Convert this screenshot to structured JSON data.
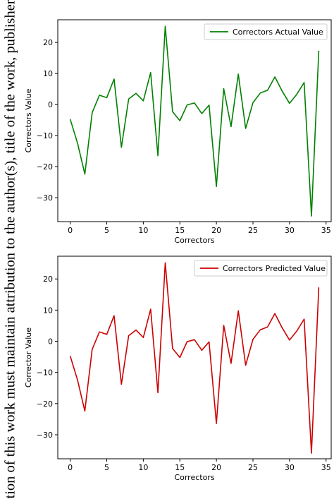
{
  "side_caption": "tion of this work must maintain attribution to the author(s), title of the work, publisher, and D",
  "chart_data": [
    {
      "type": "line",
      "xlabel": "Correctors",
      "ylabel": "Correctors Value",
      "xlim": [
        -1.7,
        35.7
      ],
      "ylim": [
        -37.7,
        27.3
      ],
      "xticks": [
        0,
        5,
        10,
        15,
        20,
        25,
        30,
        35
      ],
      "yticks": [
        -30,
        -20,
        -10,
        0,
        10,
        20
      ],
      "legend": "top-right",
      "grid": false,
      "series": [
        {
          "name": "Correctors Actual Value",
          "color": "#008000",
          "x": [
            0,
            1,
            2,
            3,
            4,
            5,
            6,
            7,
            8,
            9,
            10,
            11,
            12,
            13,
            14,
            15,
            16,
            17,
            18,
            19,
            20,
            21,
            22,
            23,
            24,
            25,
            26,
            27,
            28,
            29,
            30,
            31,
            32,
            33,
            34
          ],
          "values": [
            -4.7,
            -12.4,
            -22.4,
            -2.6,
            3.0,
            2.2,
            8.2,
            -13.8,
            1.8,
            3.6,
            1.2,
            10.3,
            -16.5,
            25.2,
            -2.3,
            -5.2,
            -0.1,
            0.5,
            -2.9,
            -0.2,
            -26.4,
            5.1,
            -7.1,
            9.8,
            -7.7,
            0.6,
            3.7,
            4.6,
            8.9,
            4.3,
            0.4,
            3.3,
            7.1,
            -35.9,
            17.3
          ]
        }
      ]
    },
    {
      "type": "line",
      "xlabel": "Correctors",
      "ylabel": "Corrector Value",
      "xlim": [
        -1.7,
        35.7
      ],
      "ylim": [
        -37.7,
        27.3
      ],
      "xticks": [
        0,
        5,
        10,
        15,
        20,
        25,
        30,
        35
      ],
      "yticks": [
        -30,
        -20,
        -10,
        0,
        10,
        20
      ],
      "legend": "top-right",
      "grid": false,
      "series": [
        {
          "name": "Correctors Predicted Value",
          "color": "#cc0000",
          "x": [
            0,
            1,
            2,
            3,
            4,
            5,
            6,
            7,
            8,
            9,
            10,
            11,
            12,
            13,
            14,
            15,
            16,
            17,
            18,
            19,
            20,
            21,
            22,
            23,
            24,
            25,
            26,
            27,
            28,
            29,
            30,
            31,
            32,
            33,
            34
          ],
          "values": [
            -4.7,
            -12.4,
            -22.4,
            -2.6,
            3.0,
            2.2,
            8.2,
            -13.8,
            1.8,
            3.6,
            1.2,
            10.3,
            -16.5,
            25.2,
            -2.3,
            -5.2,
            -0.1,
            0.5,
            -2.9,
            -0.2,
            -26.4,
            5.1,
            -7.1,
            9.8,
            -7.7,
            0.6,
            3.7,
            4.6,
            8.9,
            4.3,
            0.4,
            3.3,
            7.1,
            -35.9,
            17.3
          ]
        }
      ]
    }
  ]
}
